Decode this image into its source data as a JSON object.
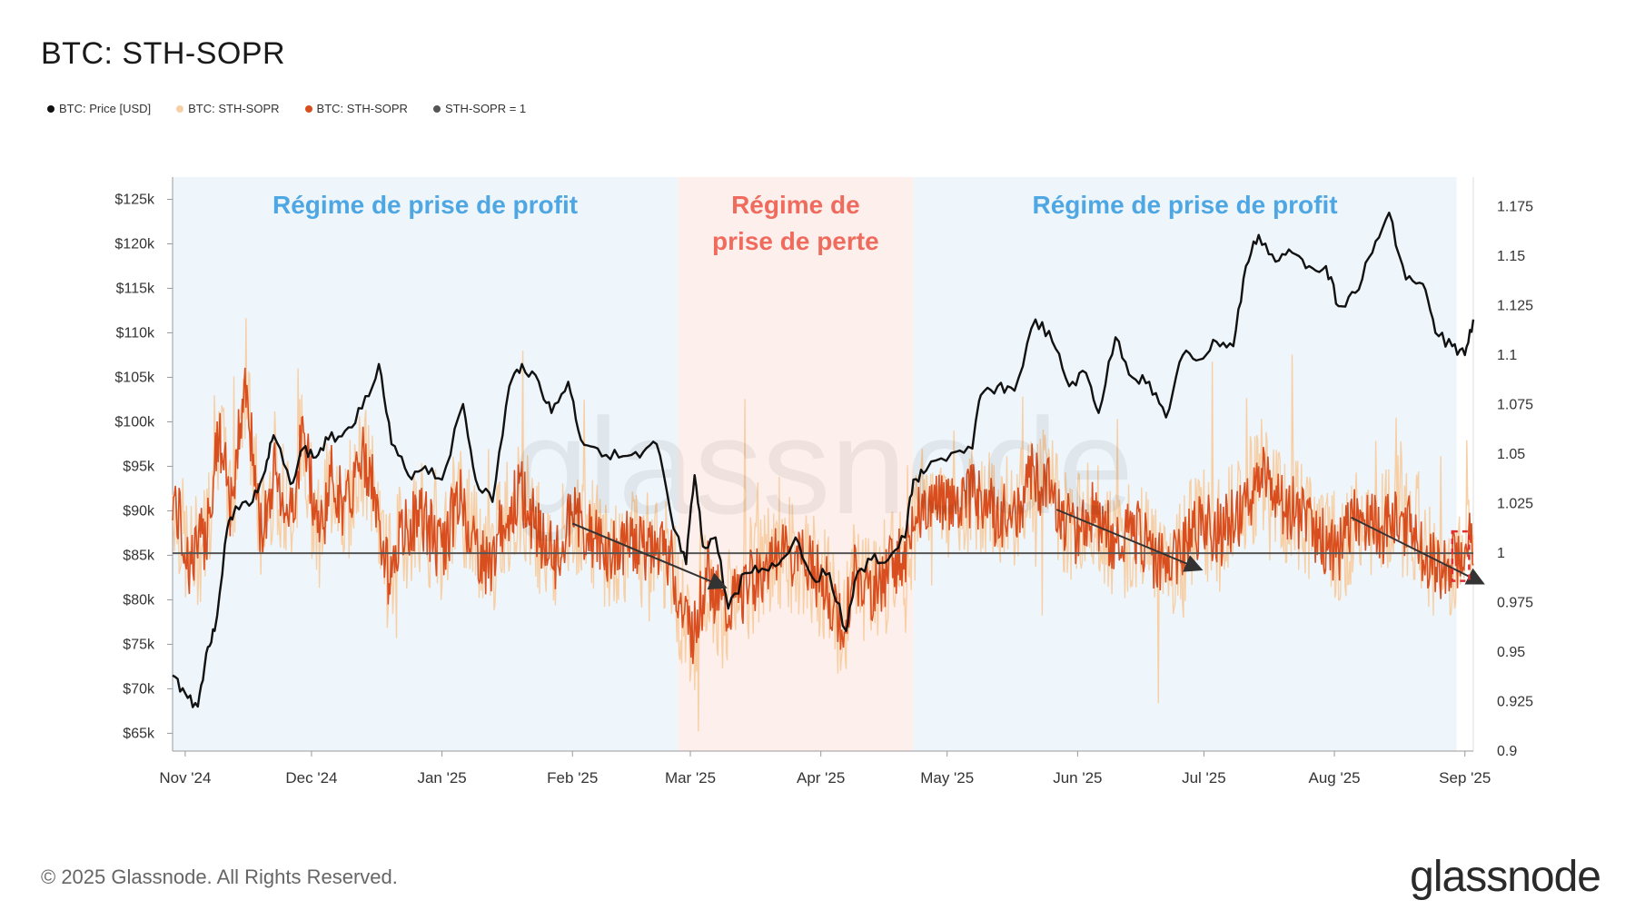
{
  "title": "BTC: STH-SOPR",
  "legend": [
    {
      "label": "BTC: Price [USD]",
      "color": "#111111"
    },
    {
      "label": "BTC: STH-SOPR",
      "color": "#f7cfa6"
    },
    {
      "label": "BTC: STH-SOPR",
      "color": "#d94e1f"
    },
    {
      "label": "STH-SOPR = 1",
      "color": "#555555"
    }
  ],
  "footer": {
    "copyright": "© 2025 Glassnode. All Rights Reserved.",
    "brand": "glassnode"
  },
  "chart_data": {
    "type": "line",
    "x_ticks": [
      "Nov '24",
      "Dec '24",
      "Jan '25",
      "Feb '25",
      "Mar '25",
      "Apr '25",
      "May '25",
      "Jun '25",
      "Jul '25",
      "Aug '25",
      "Sep '25"
    ],
    "y_left_ticks": [
      "$125k",
      "$120k",
      "$115k",
      "$110k",
      "$105k",
      "$100k",
      "$95k",
      "$90k",
      "$85k",
      "$80k",
      "$75k",
      "$70k",
      "$65k"
    ],
    "y_left_range": [
      63000,
      127500
    ],
    "y_right_ticks": [
      "1.175",
      "1.15",
      "1.125",
      "1.1",
      "1.075",
      "1.05",
      "1.025",
      "1",
      "0.975",
      "0.95",
      "0.925",
      "0.9"
    ],
    "y_right_range": [
      0.9,
      1.19
    ],
    "x_range": [
      "2024-10-29",
      "2025-09-03"
    ],
    "regimes": [
      {
        "label": "Régime de prise de profit",
        "start": "2024-10-29",
        "end": "2025-02-26",
        "color": "#eef6fb",
        "text_color": "#4ea7e3"
      },
      {
        "label": "Régime de\nprise de perte",
        "start": "2025-02-26",
        "end": "2025-04-23",
        "color": "#fdf0ec",
        "text_color": "#ef6b5e"
      },
      {
        "label": "Régime de prise de profit",
        "start": "2025-04-23",
        "end": "2025-08-30",
        "color": "#eef6fb",
        "text_color": "#4ea7e3"
      }
    ],
    "sopr_reference": 1,
    "price_series": {
      "name": "BTC: Price [USD]",
      "x": [
        "2024-10-29",
        "2024-11-01",
        "2024-11-04",
        "2024-11-06",
        "2024-11-08",
        "2024-11-11",
        "2024-11-13",
        "2024-11-17",
        "2024-11-20",
        "2024-11-22",
        "2024-11-26",
        "2024-11-29",
        "2024-12-02",
        "2024-12-05",
        "2024-12-09",
        "2024-12-13",
        "2024-12-17",
        "2024-12-20",
        "2024-12-24",
        "2024-12-28",
        "2025-01-01",
        "2025-01-06",
        "2025-01-09",
        "2025-01-13",
        "2025-01-17",
        "2025-01-20",
        "2025-01-24",
        "2025-01-27",
        "2025-01-31",
        "2025-02-03",
        "2025-02-07",
        "2025-02-12",
        "2025-02-17",
        "2025-02-21",
        "2025-02-25",
        "2025-02-28",
        "2025-03-02",
        "2025-03-04",
        "2025-03-07",
        "2025-03-10",
        "2025-03-14",
        "2025-03-18",
        "2025-03-22",
        "2025-03-26",
        "2025-03-30",
        "2025-04-03",
        "2025-04-07",
        "2025-04-09",
        "2025-04-13",
        "2025-04-17",
        "2025-04-21",
        "2025-04-23",
        "2025-04-26",
        "2025-05-02",
        "2025-05-07",
        "2025-05-09",
        "2025-05-13",
        "2025-05-17",
        "2025-05-22",
        "2025-05-26",
        "2025-05-30",
        "2025-06-03",
        "2025-06-06",
        "2025-06-10",
        "2025-06-14",
        "2025-06-18",
        "2025-06-22",
        "2025-06-26",
        "2025-06-30",
        "2025-07-04",
        "2025-07-08",
        "2025-07-11",
        "2025-07-14",
        "2025-07-18",
        "2025-07-22",
        "2025-07-26",
        "2025-07-30",
        "2025-08-02",
        "2025-08-06",
        "2025-08-10",
        "2025-08-14",
        "2025-08-18",
        "2025-08-22",
        "2025-08-25",
        "2025-08-29",
        "2025-09-01",
        "2025-09-03"
      ],
      "values": [
        71500,
        69500,
        68000,
        74000,
        76500,
        88000,
        90500,
        91000,
        94500,
        98500,
        93000,
        97000,
        96000,
        98000,
        99000,
        101500,
        106500,
        97500,
        94000,
        95000,
        93500,
        102000,
        93500,
        91000,
        104000,
        106500,
        104500,
        101000,
        104500,
        98000,
        97000,
        96000,
        96000,
        97500,
        88000,
        84000,
        94000,
        86000,
        87000,
        79000,
        83000,
        83500,
        84000,
        87000,
        82500,
        83000,
        76500,
        82000,
        84500,
        84500,
        87000,
        93500,
        94500,
        96500,
        97000,
        103000,
        104000,
        103500,
        111500,
        109000,
        104000,
        105500,
        101000,
        109500,
        105000,
        104500,
        100500,
        107500,
        107000,
        109000,
        108500,
        117500,
        121000,
        118000,
        119000,
        117500,
        117500,
        113000,
        114500,
        119000,
        123500,
        116000,
        115500,
        110000,
        108500,
        107500,
        111500
      ]
    },
    "sopr_series": {
      "name": "BTC: STH-SOPR",
      "x": [
        "2024-10-29",
        "2024-11-02",
        "2024-11-06",
        "2024-11-09",
        "2024-11-12",
        "2024-11-15",
        "2024-11-19",
        "2024-11-22",
        "2024-11-26",
        "2024-11-29",
        "2024-12-03",
        "2024-12-06",
        "2024-12-09",
        "2024-12-13",
        "2024-12-16",
        "2024-12-19",
        "2024-12-23",
        "2024-12-27",
        "2025-01-01",
        "2025-01-05",
        "2025-01-08",
        "2025-01-12",
        "2025-01-16",
        "2025-01-20",
        "2025-01-24",
        "2025-01-28",
        "2025-02-01",
        "2025-02-05",
        "2025-02-10",
        "2025-02-15",
        "2025-02-20",
        "2025-02-24",
        "2025-02-27",
        "2025-03-02",
        "2025-03-05",
        "2025-03-09",
        "2025-03-13",
        "2025-03-18",
        "2025-03-23",
        "2025-03-28",
        "2025-04-02",
        "2025-04-06",
        "2025-04-09",
        "2025-04-13",
        "2025-04-17",
        "2025-04-21",
        "2025-04-24",
        "2025-04-28",
        "2025-05-03",
        "2025-05-08",
        "2025-05-12",
        "2025-05-17",
        "2025-05-21",
        "2025-05-26",
        "2025-05-31",
        "2025-06-05",
        "2025-06-10",
        "2025-06-15",
        "2025-06-20",
        "2025-06-25",
        "2025-06-30",
        "2025-07-05",
        "2025-07-10",
        "2025-07-14",
        "2025-07-18",
        "2025-07-23",
        "2025-07-28",
        "2025-08-02",
        "2025-08-07",
        "2025-08-12",
        "2025-08-16",
        "2025-08-21",
        "2025-08-25",
        "2025-08-28",
        "2025-08-31",
        "2025-09-03"
      ],
      "values": [
        1.03,
        0.995,
        1.01,
        1.06,
        1.02,
        1.09,
        1.01,
        1.04,
        1.02,
        1.06,
        1.01,
        1.04,
        1.02,
        1.05,
        1.03,
        0.99,
        1.01,
        1.02,
        1.0,
        1.03,
        1.01,
        0.99,
        1.02,
        1.03,
        1.01,
        0.995,
        1.02,
        1.01,
        1.0,
        1.005,
        1.0,
        1.0,
        0.97,
        0.96,
        0.99,
        0.97,
        0.98,
        0.99,
        1.0,
        0.995,
        0.985,
        0.96,
        0.99,
        0.98,
        0.99,
        1.0,
        1.02,
        1.03,
        1.02,
        1.03,
        1.02,
        1.02,
        1.04,
        1.03,
        1.01,
        1.02,
        1.005,
        1.01,
        0.995,
        1.0,
        1.015,
        1.01,
        1.02,
        1.04,
        1.03,
        1.02,
        1.01,
        1.0,
        1.02,
        1.01,
        1.02,
        1.005,
        0.995,
        0.99,
        1.0,
        1.005
      ]
    },
    "annotations": {
      "trend_arrows": [
        {
          "from": [
            "2025-02-01",
            1.015
          ],
          "to": [
            "2025-03-09",
            0.983
          ]
        },
        {
          "from": [
            "2025-05-27",
            1.022
          ],
          "to": [
            "2025-06-30",
            0.992
          ]
        },
        {
          "from": [
            "2025-08-05",
            1.018
          ],
          "to": [
            "2025-09-05",
            0.985
          ]
        }
      ],
      "highlight_box": {
        "x": [
          "2025-08-29",
          "2025-09-02"
        ],
        "y": [
          0.986,
          1.011
        ]
      }
    }
  }
}
